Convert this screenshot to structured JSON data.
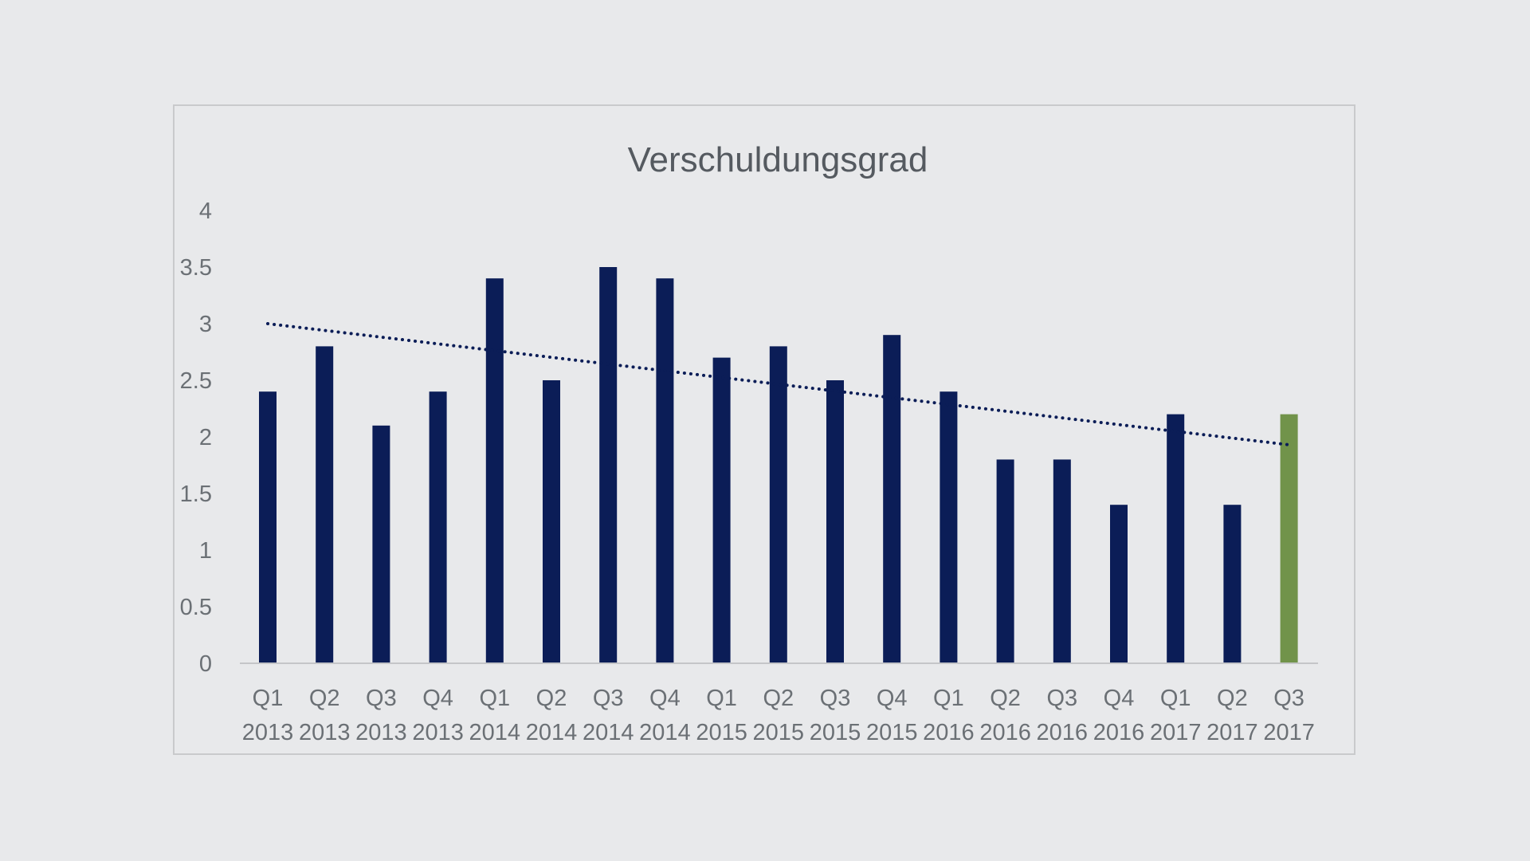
{
  "chart_data": {
    "type": "bar",
    "title": "Verschuldungsgrad",
    "xlabel": "",
    "ylabel": "",
    "ylim": [
      0,
      4
    ],
    "yticks": [
      0,
      0.5,
      1,
      1.5,
      2,
      2.5,
      3,
      3.5,
      4
    ],
    "ytick_labels": [
      "0",
      "0.5",
      "1",
      "1.5",
      "2",
      "2.5",
      "3",
      "3.5",
      "4"
    ],
    "grid": false,
    "categories": [
      [
        "Q1",
        "2013"
      ],
      [
        "Q2",
        "2013"
      ],
      [
        "Q3",
        "2013"
      ],
      [
        "Q4",
        "2013"
      ],
      [
        "Q1",
        "2014"
      ],
      [
        "Q2",
        "2014"
      ],
      [
        "Q3",
        "2014"
      ],
      [
        "Q4",
        "2014"
      ],
      [
        "Q1",
        "2015"
      ],
      [
        "Q2",
        "2015"
      ],
      [
        "Q3",
        "2015"
      ],
      [
        "Q4",
        "2015"
      ],
      [
        "Q1",
        "2016"
      ],
      [
        "Q2",
        "2016"
      ],
      [
        "Q3",
        "2016"
      ],
      [
        "Q4",
        "2016"
      ],
      [
        "Q1",
        "2017"
      ],
      [
        "Q2",
        "2017"
      ],
      [
        "Q3",
        "2017"
      ]
    ],
    "values": [
      2.4,
      2.8,
      2.1,
      2.4,
      3.4,
      2.5,
      3.5,
      3.4,
      2.7,
      2.8,
      2.5,
      2.9,
      2.4,
      1.8,
      1.8,
      1.4,
      2.2,
      1.4,
      2.2
    ],
    "bar_color": "#0b1d57",
    "highlight_color": "#71934a",
    "highlight_index": 18,
    "trendline": {
      "type": "linear",
      "style": "dotted",
      "color": "#0b1d57",
      "start": 3.0,
      "end": 1.93
    }
  }
}
